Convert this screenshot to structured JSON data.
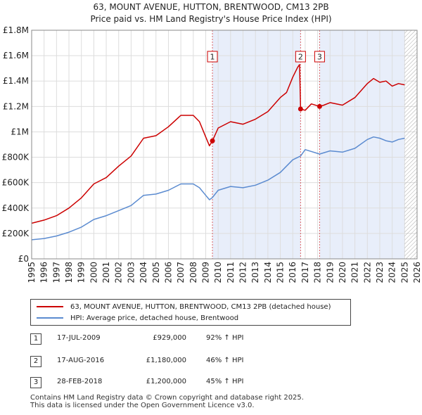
{
  "chart_data": {
    "type": "line",
    "title": "63, MOUNT AVENUE, HUTTON, BRENTWOOD, CM13 2PB",
    "subtitle": "Price paid vs. HM Land Registry's House Price Index (HPI)",
    "xlabel": "",
    "ylabel": "",
    "xlim": [
      1995,
      2026
    ],
    "ylim": [
      0,
      1800000
    ],
    "y_ticks": [
      0,
      200000,
      400000,
      600000,
      800000,
      1000000,
      1200000,
      1400000,
      1600000,
      1800000
    ],
    "y_tick_labels": [
      "£0",
      "£200K",
      "£400K",
      "£600K",
      "£800K",
      "£1M",
      "£1.2M",
      "£1.4M",
      "£1.6M",
      "£1.8M"
    ],
    "x_ticks": [
      1995,
      1996,
      1997,
      1998,
      1999,
      2000,
      2001,
      2002,
      2003,
      2004,
      2005,
      2006,
      2007,
      2008,
      2009,
      2010,
      2011,
      2012,
      2013,
      2014,
      2015,
      2016,
      2017,
      2018,
      2019,
      2020,
      2021,
      2022,
      2023,
      2024,
      2025,
      2026
    ],
    "x_tick_labels": [
      "1995",
      "1996",
      "1997",
      "1998",
      "1999",
      "2000",
      "2001",
      "2002",
      "2003",
      "2004",
      "2005",
      "2006",
      "2007",
      "2008",
      "2009",
      "2010",
      "2011",
      "2012",
      "2013",
      "2014",
      "2015",
      "2016",
      "2017",
      "2018",
      "2019",
      "2020",
      "2021",
      "2022",
      "2023",
      "2024",
      "2025",
      "2026"
    ],
    "hatch_from": 2025.0,
    "shaded_ranges": [
      [
        2009.54,
        2016.63
      ],
      [
        2018.16,
        2025.0
      ]
    ],
    "series": [
      {
        "name": "63, MOUNT AVENUE, HUTTON, BRENTWOOD, CM13 2PB (detached house)",
        "color": "#cc0000",
        "x": [
          1995.0,
          1996.0,
          1997.0,
          1998.0,
          1999.0,
          2000.0,
          2001.0,
          2002.0,
          2003.0,
          2004.0,
          2005.0,
          2006.0,
          2007.0,
          2008.0,
          2008.5,
          2009.0,
          2009.3,
          2009.54,
          2010.0,
          2011.0,
          2012.0,
          2013.0,
          2014.0,
          2015.0,
          2015.5,
          2016.0,
          2016.4,
          2016.55,
          2016.63,
          2017.0,
          2017.5,
          2018.16,
          2018.5,
          2019.0,
          2020.0,
          2021.0,
          2022.0,
          2022.5,
          2023.0,
          2023.5,
          2024.0,
          2024.5,
          2025.0
        ],
        "y": [
          280000,
          305000,
          340000,
          400000,
          480000,
          590000,
          640000,
          730000,
          810000,
          950000,
          970000,
          1040000,
          1130000,
          1130000,
          1080000,
          960000,
          890000,
          929000,
          1030000,
          1080000,
          1060000,
          1100000,
          1160000,
          1270000,
          1310000,
          1430000,
          1510000,
          1530000,
          1180000,
          1170000,
          1220000,
          1200000,
          1210000,
          1230000,
          1210000,
          1270000,
          1380000,
          1420000,
          1390000,
          1400000,
          1360000,
          1380000,
          1370000
        ]
      },
      {
        "name": "HPI: Average price, detached house, Brentwood",
        "color": "#5b8bd0",
        "x": [
          1995.0,
          1996.0,
          1997.0,
          1998.0,
          1999.0,
          2000.0,
          2001.0,
          2002.0,
          2003.0,
          2004.0,
          2005.0,
          2006.0,
          2007.0,
          2008.0,
          2008.5,
          2009.0,
          2009.3,
          2009.54,
          2010.0,
          2011.0,
          2012.0,
          2013.0,
          2014.0,
          2015.0,
          2016.0,
          2016.63,
          2017.0,
          2018.16,
          2019.0,
          2020.0,
          2021.0,
          2022.0,
          2022.5,
          2023.0,
          2023.5,
          2024.0,
          2024.5,
          2025.0
        ],
        "y": [
          150000,
          160000,
          180000,
          210000,
          250000,
          310000,
          340000,
          380000,
          420000,
          500000,
          510000,
          540000,
          590000,
          590000,
          560000,
          500000,
          465000,
          483000,
          540000,
          570000,
          560000,
          580000,
          620000,
          680000,
          780000,
          810000,
          860000,
          825000,
          850000,
          840000,
          870000,
          940000,
          960000,
          950000,
          930000,
          920000,
          940000,
          950000
        ]
      }
    ],
    "annotations": [
      {
        "label": "1",
        "x": 2009.54,
        "y": 929000
      },
      {
        "label": "2",
        "x": 2016.63,
        "y": 1180000
      },
      {
        "label": "3",
        "x": 2018.16,
        "y": 1200000
      }
    ]
  },
  "legend": {
    "property_label": "63, MOUNT AVENUE, HUTTON, BRENTWOOD, CM13 2PB (detached house)",
    "hpi_label": "HPI: Average price, detached house, Brentwood"
  },
  "sales": [
    {
      "num": "1",
      "date": "17-JUL-2009",
      "price": "£929,000",
      "hpi": "92% ↑ HPI"
    },
    {
      "num": "2",
      "date": "17-AUG-2016",
      "price": "£1,180,000",
      "hpi": "46% ↑ HPI"
    },
    {
      "num": "3",
      "date": "28-FEB-2018",
      "price": "£1,200,000",
      "hpi": "45% ↑ HPI"
    }
  ],
  "footer": {
    "line1": "Contains HM Land Registry data © Crown copyright and database right 2025.",
    "line2": "This data is licensed under the Open Government Licence v3.0."
  }
}
